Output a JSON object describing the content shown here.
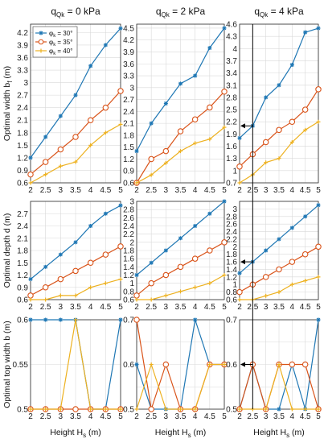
{
  "colors": {
    "s30": "#1f77b4",
    "s35": "#d95319",
    "s40": "#edb120",
    "grid": "#d9d9d9",
    "axis": "#262626"
  },
  "columns": [
    {
      "title_main": "q",
      "title_sub": "Qk",
      "title_rest": " = 0 kPa"
    },
    {
      "title_main": "q",
      "title_sub": "Qk",
      "title_rest": " = 2 kPa"
    },
    {
      "title_main": "q",
      "title_sub": "Qk",
      "title_rest": " = 4 kPa"
    }
  ],
  "row_labels": [
    {
      "main": "Optimal width b",
      "sub": "f",
      "rest": " (m)"
    },
    {
      "main": "Optimal depth d (m)",
      "sub": "",
      "rest": ""
    },
    {
      "main": "Optimal top width b (m)",
      "sub": "",
      "rest": ""
    }
  ],
  "x_label": {
    "main": "Height H",
    "sub": "s",
    "rest": " (m)"
  },
  "legend": [
    {
      "phi": "φ",
      "sub": "k",
      "rest": " = 30°",
      "series": "s30"
    },
    {
      "phi": "φ",
      "sub": "k",
      "rest": " = 35°",
      "series": "s35"
    },
    {
      "phi": "φ",
      "sub": "k",
      "rest": " = 40°",
      "series": "s40"
    }
  ],
  "chart_data": [
    {
      "type": "line",
      "row": 0,
      "col": 0,
      "ylim": [
        0.6,
        4.4
      ],
      "yticks": [
        0.6,
        0.9,
        1.2,
        1.5,
        1.8,
        2.1,
        2.4,
        2.7,
        3,
        3.3,
        3.6,
        3.9,
        4.2
      ],
      "x": [
        2,
        2.5,
        3,
        3.5,
        4,
        4.5,
        5
      ],
      "series": [
        {
          "key": "s30",
          "values": [
            1.2,
            1.7,
            2.2,
            2.7,
            3.4,
            3.9,
            4.3
          ]
        },
        {
          "key": "s35",
          "values": [
            0.8,
            1.1,
            1.4,
            1.7,
            2.1,
            2.4,
            2.8
          ]
        },
        {
          "key": "s40",
          "values": [
            0.6,
            0.8,
            1.0,
            1.1,
            1.5,
            1.8,
            2.0
          ]
        }
      ]
    },
    {
      "type": "line",
      "row": 0,
      "col": 1,
      "ylim": [
        0.6,
        4.6
      ],
      "yticks": [
        0.6,
        0.9,
        1.2,
        1.5,
        1.8,
        2.1,
        2.4,
        2.7,
        3,
        3.3,
        3.6,
        3.9,
        4.2,
        4.5
      ],
      "x": [
        2,
        2.5,
        3,
        3.5,
        4,
        4.5,
        5
      ],
      "series": [
        {
          "key": "s30",
          "values": [
            1.4,
            2.1,
            2.6,
            3.1,
            3.3,
            4.0,
            4.5
          ]
        },
        {
          "key": "s35",
          "values": [
            0.6,
            1.2,
            1.4,
            1.9,
            2.2,
            2.5,
            2.9
          ]
        },
        {
          "key": "s40",
          "values": [
            0.6,
            0.8,
            1.1,
            1.4,
            1.6,
            1.7,
            2.0
          ]
        }
      ]
    },
    {
      "type": "line",
      "row": 0,
      "col": 2,
      "ylim": [
        0.7,
        4.6
      ],
      "yticks": [
        0.7,
        1,
        1.3,
        1.6,
        1.9,
        2.2,
        2.5,
        2.8,
        3.1,
        3.4,
        3.7,
        4,
        4.3,
        4.6
      ],
      "x": [
        2,
        2.5,
        3,
        3.5,
        4,
        4.5,
        5
      ],
      "series": [
        {
          "key": "s30",
          "values": [
            1.8,
            2.1,
            2.8,
            3.1,
            3.6,
            4.4,
            4.5
          ]
        },
        {
          "key": "s35",
          "values": [
            1.1,
            1.4,
            1.7,
            2.0,
            2.2,
            2.5,
            3.0
          ]
        },
        {
          "key": "s40",
          "values": [
            0.7,
            0.9,
            1.2,
            1.3,
            1.7,
            2.0,
            2.2
          ]
        }
      ]
    },
    {
      "type": "line",
      "row": 1,
      "col": 0,
      "ylim": [
        0.6,
        3.0
      ],
      "yticks": [
        0.6,
        0.9,
        1.2,
        1.5,
        1.8,
        2.1,
        2.4,
        2.7
      ],
      "x": [
        2,
        2.5,
        3,
        3.5,
        4,
        4.5,
        5
      ],
      "series": [
        {
          "key": "s30",
          "values": [
            1.1,
            1.4,
            1.7,
            2.0,
            2.4,
            2.7,
            2.9
          ]
        },
        {
          "key": "s35",
          "values": [
            0.7,
            0.9,
            1.1,
            1.3,
            1.5,
            1.7,
            1.9
          ]
        },
        {
          "key": "s40",
          "values": [
            0.6,
            0.6,
            0.7,
            0.7,
            0.9,
            1.0,
            1.1
          ]
        }
      ]
    },
    {
      "type": "line",
      "row": 1,
      "col": 1,
      "ylim": [
        0.6,
        3.0
      ],
      "yticks": [
        0.6,
        0.8,
        1,
        1.2,
        1.4,
        1.6,
        1.8,
        2,
        2.2,
        2.4,
        2.6,
        2.8,
        3
      ],
      "x": [
        2,
        2.5,
        3,
        3.5,
        4,
        4.5,
        5
      ],
      "series": [
        {
          "key": "s30",
          "values": [
            1.2,
            1.5,
            1.8,
            2.1,
            2.4,
            2.7,
            3.0
          ]
        },
        {
          "key": "s35",
          "values": [
            0.7,
            1.0,
            1.2,
            1.4,
            1.6,
            1.8,
            2.0
          ]
        },
        {
          "key": "s40",
          "values": [
            0.6,
            0.6,
            0.7,
            0.8,
            0.9,
            1.0,
            1.2
          ]
        }
      ]
    },
    {
      "type": "line",
      "row": 1,
      "col": 2,
      "ylim": [
        0.6,
        3.2
      ],
      "yticks": [
        0.6,
        0.8,
        1,
        1.2,
        1.4,
        1.6,
        1.8,
        2,
        2.2,
        2.4,
        2.6,
        2.8,
        3
      ],
      "x": [
        2,
        2.5,
        3,
        3.5,
        4,
        4.5,
        5
      ],
      "series": [
        {
          "key": "s30",
          "values": [
            1.3,
            1.6,
            1.9,
            2.2,
            2.5,
            2.8,
            3.1
          ]
        },
        {
          "key": "s35",
          "values": [
            0.8,
            1.0,
            1.2,
            1.4,
            1.6,
            1.8,
            2.0
          ]
        },
        {
          "key": "s40",
          "values": [
            0.6,
            0.6,
            0.7,
            0.8,
            1.0,
            1.1,
            1.2
          ]
        }
      ]
    },
    {
      "type": "line",
      "row": 2,
      "col": 0,
      "ylim": [
        0.5,
        0.6
      ],
      "yticks": [
        0.5,
        0.55,
        0.6
      ],
      "tick_labels": [
        "0.5",
        "0.55",
        "0.6"
      ],
      "x": [
        2,
        2.5,
        3,
        3.5,
        4,
        4.5,
        5
      ],
      "series": [
        {
          "key": "s30",
          "values": [
            0.6,
            0.6,
            0.6,
            0.6,
            0.5,
            0.5,
            0.6
          ]
        },
        {
          "key": "s35",
          "values": [
            0.5,
            0.5,
            0.5,
            0.5,
            0.5,
            0.5,
            0.5
          ]
        },
        {
          "key": "s40",
          "values": [
            0.5,
            0.5,
            0.5,
            0.6,
            0.5,
            0.5,
            0.5
          ]
        }
      ]
    },
    {
      "type": "line",
      "row": 2,
      "col": 1,
      "ylim": [
        0.5,
        0.7
      ],
      "yticks": [
        0.5,
        0.55,
        0.6,
        0.65,
        0.7
      ],
      "tick_labels": [
        "0.5",
        "",
        "0.6",
        "",
        "0.7"
      ],
      "x": [
        2,
        2.5,
        3,
        3.5,
        4,
        4.5,
        5
      ],
      "series": [
        {
          "key": "s30",
          "values": [
            0.6,
            0.5,
            0.5,
            0.5,
            0.7,
            0.6,
            0.6
          ]
        },
        {
          "key": "s35",
          "values": [
            0.7,
            0.5,
            0.6,
            0.5,
            0.5,
            0.6,
            0.6
          ]
        },
        {
          "key": "s40",
          "values": [
            0.5,
            0.6,
            0.5,
            0.5,
            0.5,
            0.6,
            0.6
          ]
        }
      ]
    },
    {
      "type": "line",
      "row": 2,
      "col": 2,
      "ylim": [
        0.5,
        0.7
      ],
      "yticks": [
        0.5,
        0.55,
        0.6,
        0.65,
        0.7
      ],
      "tick_labels": [
        "0.5",
        "",
        "0.6",
        "",
        "0.7"
      ],
      "x": [
        2,
        2.5,
        3,
        3.5,
        4,
        4.5,
        5
      ],
      "series": [
        {
          "key": "s30",
          "values": [
            0.5,
            0.6,
            0.5,
            0.5,
            0.6,
            0.5,
            0.7
          ]
        },
        {
          "key": "s35",
          "values": [
            0.5,
            0.6,
            0.5,
            0.6,
            0.6,
            0.6,
            0.5
          ]
        },
        {
          "key": "s40",
          "values": [
            0.5,
            0.5,
            0.5,
            0.6,
            0.5,
            0.5,
            0.5
          ]
        }
      ]
    }
  ],
  "markers": [
    {
      "col": 2,
      "row": 0,
      "y": 2.1
    },
    {
      "col": 2,
      "row": 1,
      "y": 1.6
    },
    {
      "col": 2,
      "row": 2,
      "y": 0.6
    }
  ],
  "marker_line_x": 2.5
}
